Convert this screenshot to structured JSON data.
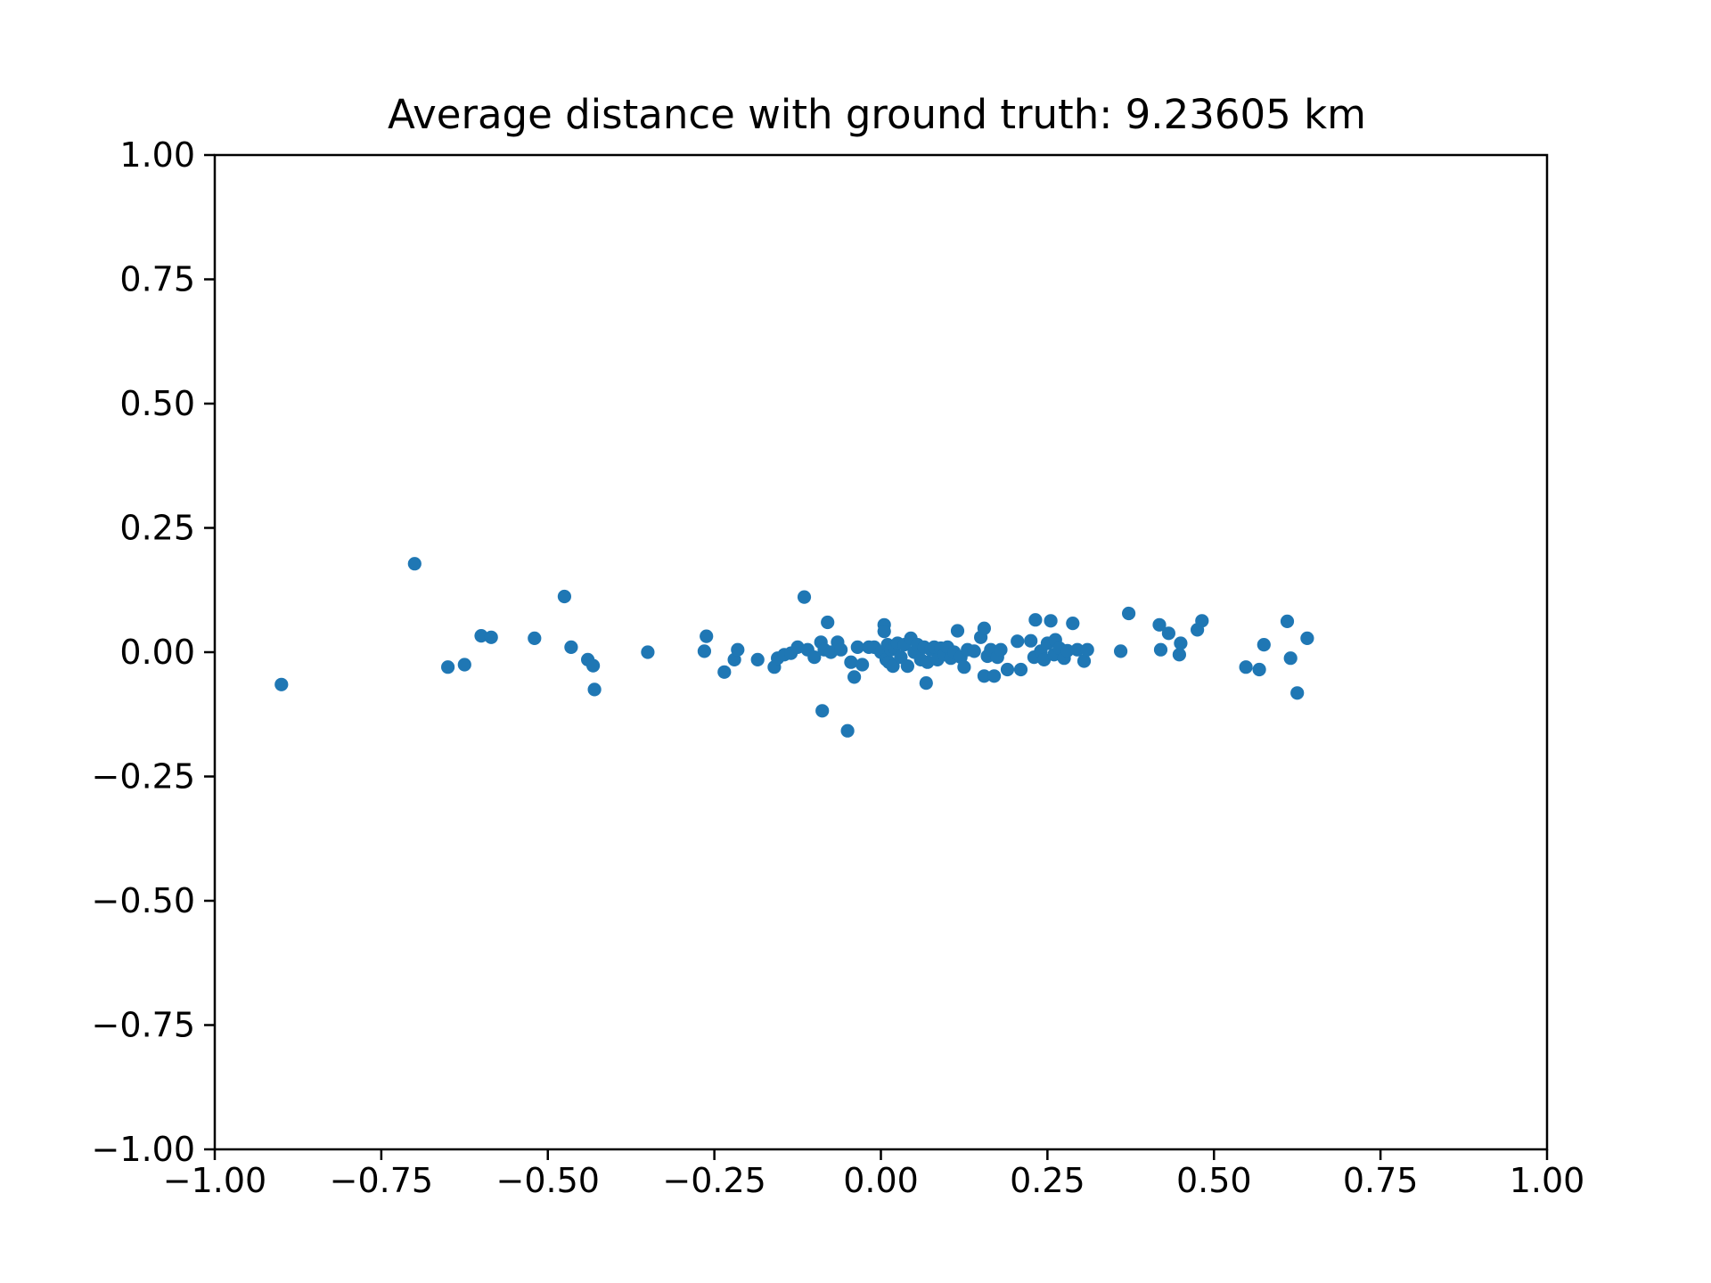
{
  "chart_data": {
    "type": "scatter",
    "title": "Average distance with ground truth: 9.23605 km",
    "xlabel": "",
    "ylabel": "",
    "xlim": [
      -1.0,
      1.0
    ],
    "ylim": [
      -1.0,
      1.0
    ],
    "xticks": [
      "−1.00",
      "−0.75",
      "−0.50",
      "−0.25",
      "0.00",
      "0.25",
      "0.50",
      "0.75",
      "1.00"
    ],
    "yticks": [
      "1.00",
      "0.75",
      "0.50",
      "0.25",
      "0.00",
      "−0.25",
      "−0.50",
      "−0.75",
      "−1.00"
    ],
    "xtick_values": [
      -1.0,
      -0.75,
      -0.5,
      -0.25,
      0.0,
      0.25,
      0.5,
      0.75,
      1.0
    ],
    "ytick_values": [
      1.0,
      0.75,
      0.5,
      0.25,
      0.0,
      -0.25,
      -0.5,
      -0.75,
      -1.0
    ],
    "grid": false,
    "point_color": "#1f77b4",
    "series": [
      {
        "points": [
          [
            -0.9,
            -0.065
          ],
          [
            -0.7,
            0.178
          ],
          [
            -0.65,
            -0.03
          ],
          [
            -0.625,
            -0.025
          ],
          [
            -0.6,
            0.033
          ],
          [
            -0.585,
            0.03
          ],
          [
            -0.52,
            0.028
          ],
          [
            -0.475,
            0.112
          ],
          [
            -0.465,
            0.01
          ],
          [
            -0.44,
            -0.015
          ],
          [
            -0.432,
            -0.027
          ],
          [
            -0.43,
            -0.075
          ],
          [
            -0.35,
            0.0
          ],
          [
            -0.265,
            0.002
          ],
          [
            -0.262,
            0.032
          ],
          [
            -0.235,
            -0.04
          ],
          [
            -0.22,
            -0.015
          ],
          [
            -0.215,
            0.005
          ],
          [
            -0.185,
            -0.015
          ],
          [
            -0.16,
            -0.03
          ],
          [
            -0.155,
            -0.012
          ],
          [
            -0.145,
            -0.005
          ],
          [
            -0.135,
            -0.002
          ],
          [
            -0.125,
            0.01
          ],
          [
            -0.115,
            0.111
          ],
          [
            -0.11,
            0.005
          ],
          [
            -0.1,
            -0.01
          ],
          [
            -0.09,
            0.02
          ],
          [
            -0.088,
            -0.118
          ],
          [
            -0.085,
            0.005
          ],
          [
            -0.08,
            0.06
          ],
          [
            -0.075,
            0.0
          ],
          [
            -0.065,
            0.02
          ],
          [
            -0.06,
            0.005
          ],
          [
            -0.05,
            -0.158
          ],
          [
            -0.045,
            -0.02
          ],
          [
            -0.04,
            -0.05
          ],
          [
            -0.035,
            0.01
          ],
          [
            -0.028,
            -0.025
          ],
          [
            -0.018,
            0.01
          ],
          [
            -0.01,
            0.01
          ],
          [
            0.0,
            0.0
          ],
          [
            0.005,
            0.055
          ],
          [
            0.005,
            0.042
          ],
          [
            0.008,
            -0.015
          ],
          [
            0.01,
            0.015
          ],
          [
            0.012,
            -0.02
          ],
          [
            0.015,
            0.005
          ],
          [
            0.018,
            -0.028
          ],
          [
            0.02,
            0.01
          ],
          [
            0.025,
            0.018
          ],
          [
            0.03,
            -0.01
          ],
          [
            0.035,
            0.015
          ],
          [
            0.04,
            -0.028
          ],
          [
            0.045,
            0.028
          ],
          [
            0.05,
            0.0
          ],
          [
            0.055,
            0.015
          ],
          [
            0.06,
            -0.015
          ],
          [
            0.065,
            0.01
          ],
          [
            0.068,
            -0.062
          ],
          [
            0.07,
            -0.02
          ],
          [
            0.075,
            0.005
          ],
          [
            0.08,
            0.01
          ],
          [
            0.085,
            -0.015
          ],
          [
            0.09,
            0.008
          ],
          [
            0.095,
            -0.005
          ],
          [
            0.1,
            0.01
          ],
          [
            0.105,
            -0.012
          ],
          [
            0.11,
            0.0
          ],
          [
            0.115,
            0.043
          ],
          [
            0.12,
            -0.01
          ],
          [
            0.125,
            -0.03
          ],
          [
            0.13,
            0.005
          ],
          [
            0.14,
            0.002
          ],
          [
            0.15,
            0.03
          ],
          [
            0.155,
            0.048
          ],
          [
            0.155,
            -0.048
          ],
          [
            0.16,
            -0.008
          ],
          [
            0.165,
            0.005
          ],
          [
            0.17,
            -0.048
          ],
          [
            0.175,
            -0.01
          ],
          [
            0.18,
            0.005
          ],
          [
            0.19,
            -0.035
          ],
          [
            0.205,
            0.022
          ],
          [
            0.21,
            -0.035
          ],
          [
            0.225,
            0.023
          ],
          [
            0.23,
            -0.01
          ],
          [
            0.232,
            0.065
          ],
          [
            0.24,
            0.002
          ],
          [
            0.245,
            -0.015
          ],
          [
            0.25,
            0.018
          ],
          [
            0.255,
            0.063
          ],
          [
            0.26,
            -0.005
          ],
          [
            0.262,
            0.025
          ],
          [
            0.268,
            0.008
          ],
          [
            0.275,
            -0.012
          ],
          [
            0.28,
            0.003
          ],
          [
            0.288,
            0.058
          ],
          [
            0.295,
            0.005
          ],
          [
            0.305,
            -0.018
          ],
          [
            0.31,
            0.005
          ],
          [
            0.36,
            0.002
          ],
          [
            0.372,
            0.078
          ],
          [
            0.418,
            0.055
          ],
          [
            0.42,
            0.005
          ],
          [
            0.432,
            0.038
          ],
          [
            0.448,
            -0.005
          ],
          [
            0.45,
            0.018
          ],
          [
            0.475,
            0.045
          ],
          [
            0.482,
            0.063
          ],
          [
            0.548,
            -0.03
          ],
          [
            0.568,
            -0.035
          ],
          [
            0.575,
            0.015
          ],
          [
            0.61,
            0.062
          ],
          [
            0.615,
            -0.012
          ],
          [
            0.625,
            -0.082
          ],
          [
            0.64,
            0.028
          ]
        ]
      }
    ]
  }
}
